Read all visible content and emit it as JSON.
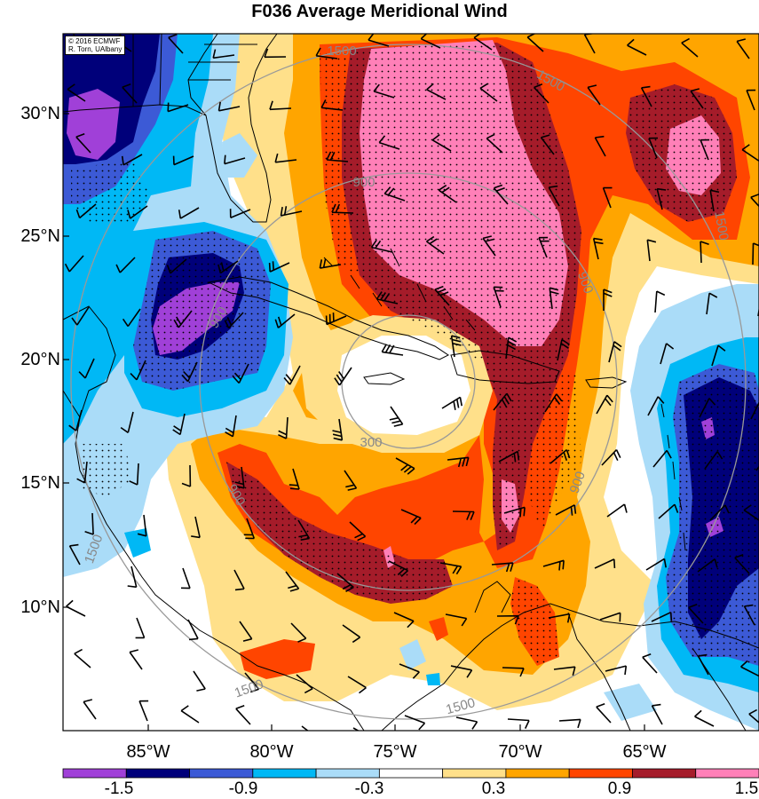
{
  "title": "F036 Average Meridional Wind",
  "credit": {
    "line1": "© 2016 ECMWF",
    "line2": "R. Torn, UAlbany"
  },
  "axes": {
    "lat_labels": [
      "30°N",
      "25°N",
      "20°N",
      "15°N",
      "10°N"
    ],
    "lon_labels": [
      "85°W",
      "80°W",
      "75°W",
      "70°W",
      "65°W"
    ]
  },
  "range_ring_labels": [
    "300",
    "900",
    "900",
    "900",
    "900",
    "900",
    "1500",
    "1500",
    "1500",
    "1500",
    "1500",
    "1500"
  ],
  "colorbar": {
    "labels": [
      "-1.5",
      "-0.9",
      "-0.3",
      "0.3",
      "0.9",
      "1.5"
    ],
    "colors": [
      "#a040d8",
      "#00007a",
      "#3c5ad6",
      "#00b8f5",
      "#aadcf8",
      "#ffffff",
      "#ffe08a",
      "#ffa500",
      "#ff4500",
      "#a51c2a",
      "#ff80b8"
    ]
  }
}
